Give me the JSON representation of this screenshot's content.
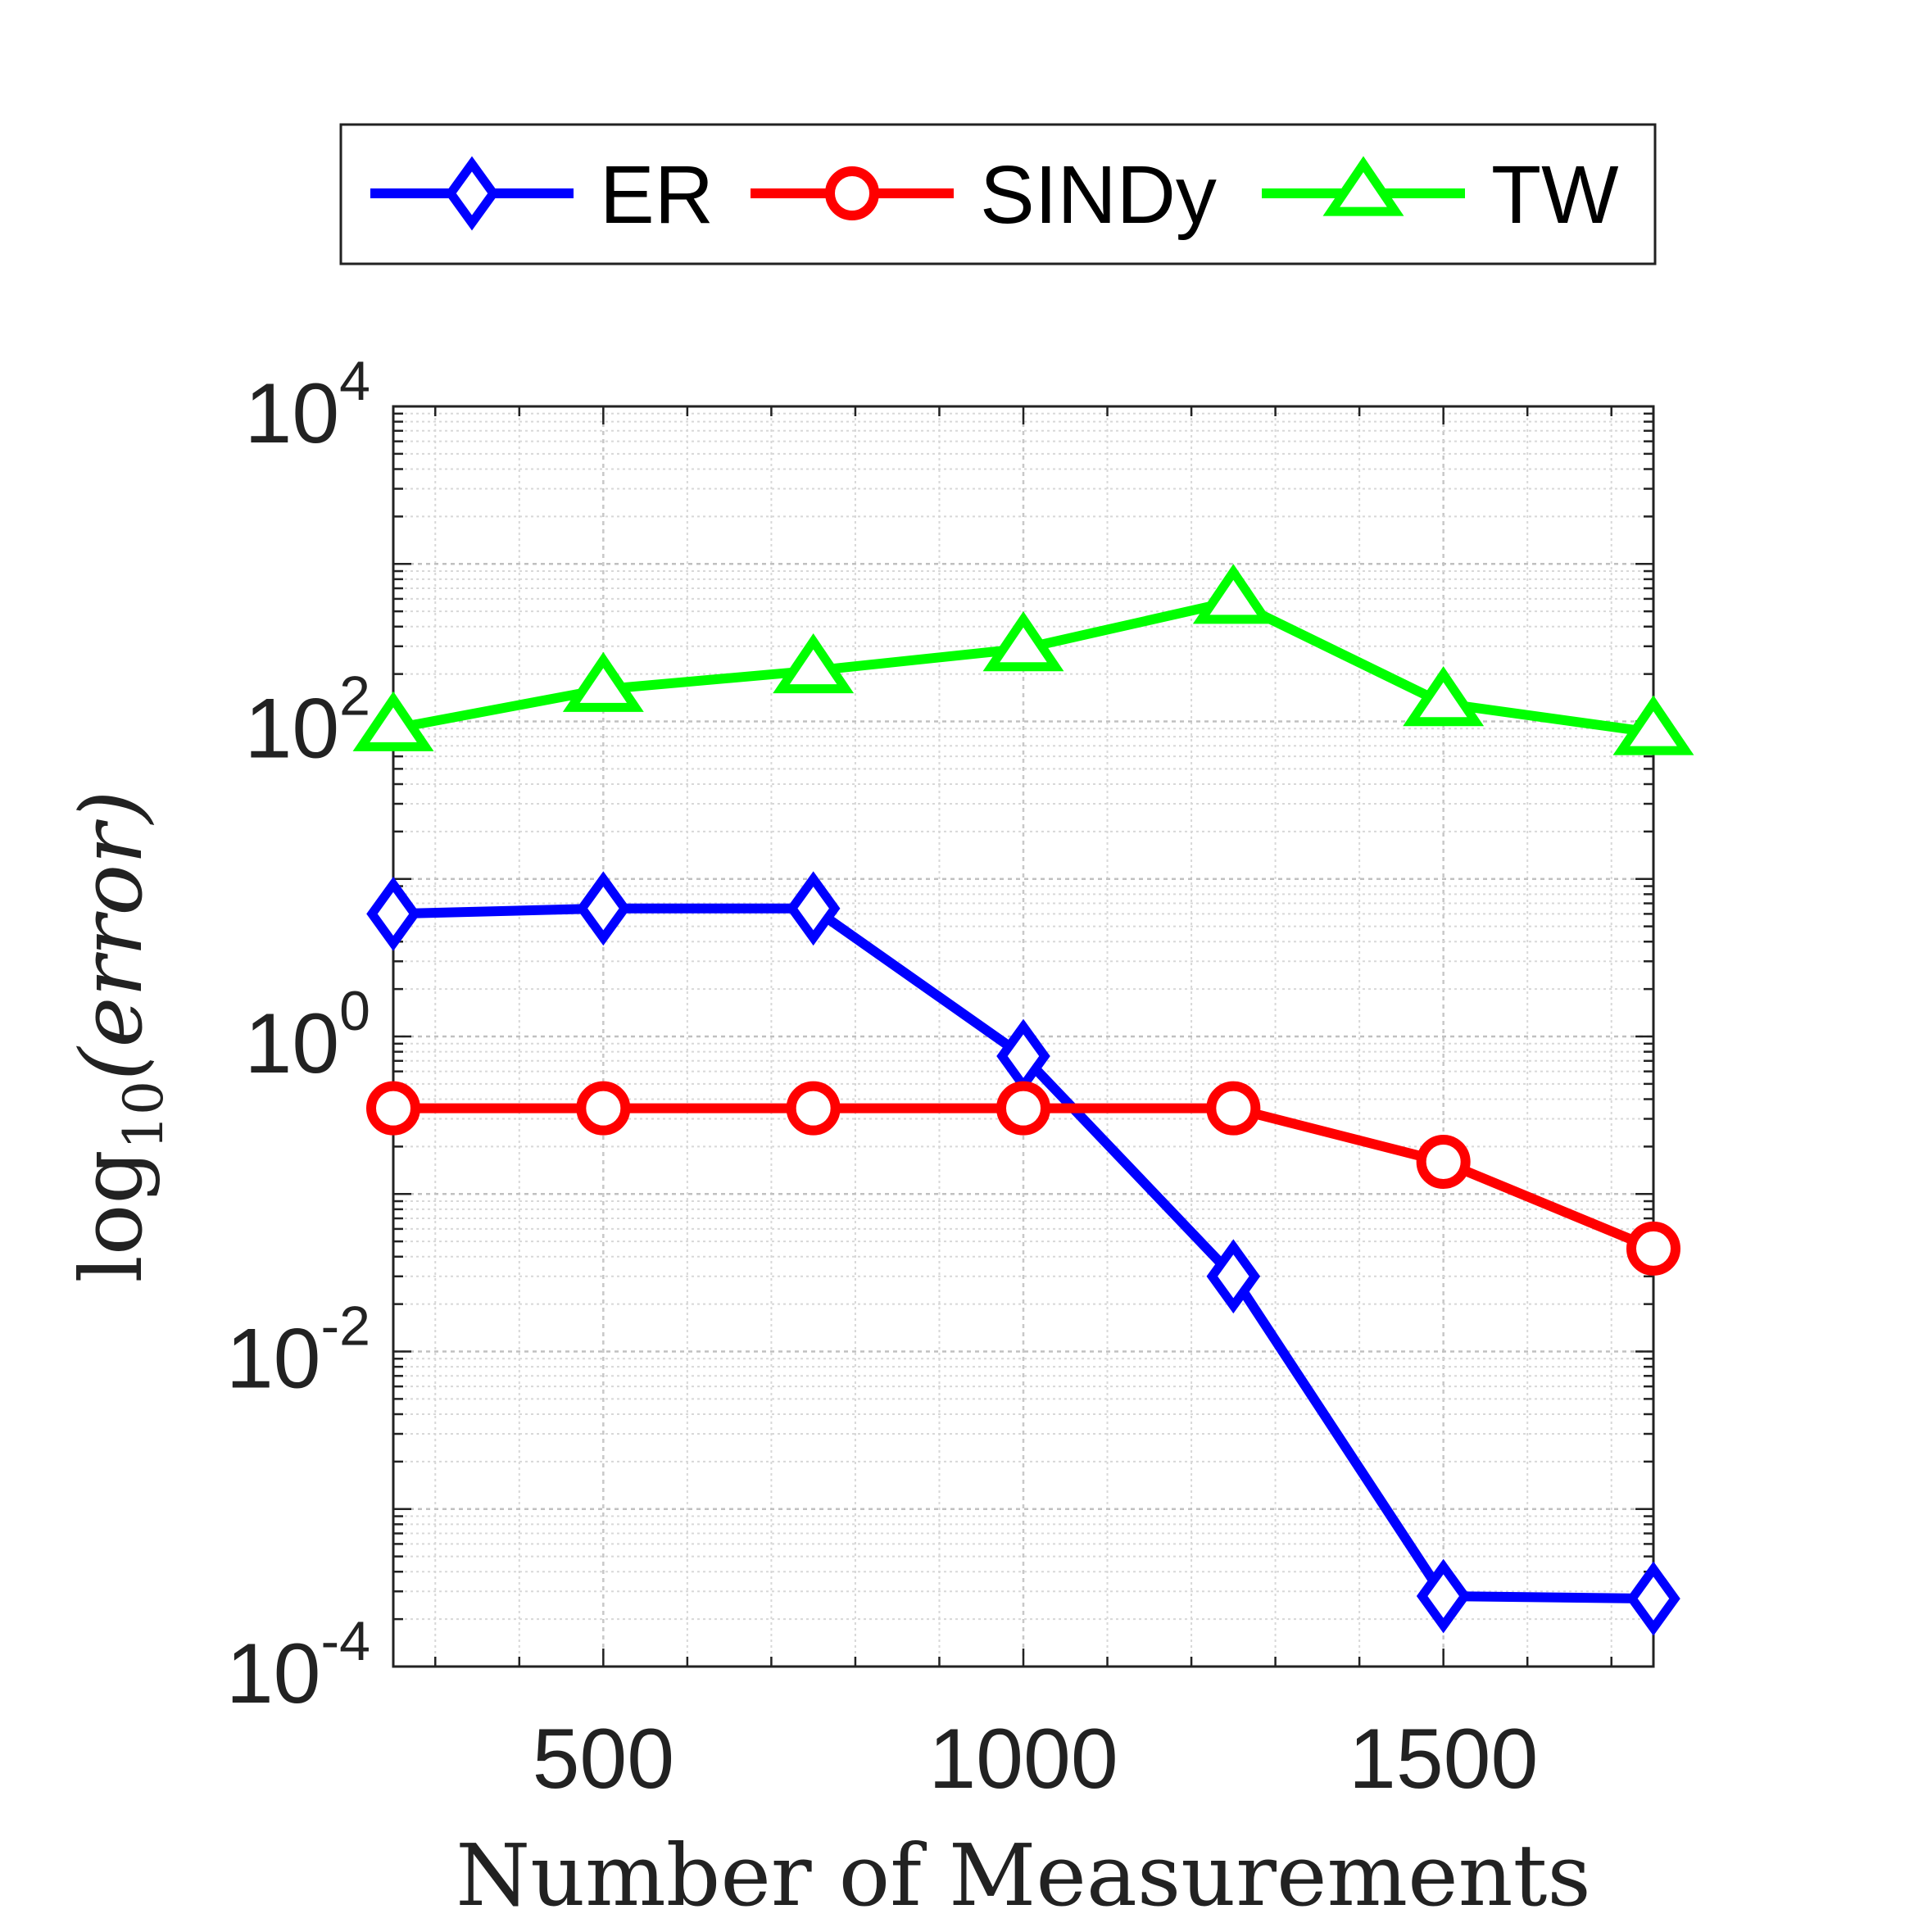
{
  "chart_data": {
    "type": "line",
    "xlabel": "Number of Measurements",
    "ylabel": {
      "prefix": "log",
      "subscript": "10",
      "argument": "(error)"
    },
    "xlim": [
      250,
      1750
    ],
    "ylim": [
      0.0001,
      10000
    ],
    "yscale": "log",
    "x_ticks": [
      500,
      1000,
      1500
    ],
    "x_tick_labels": [
      "500",
      "1000",
      "1500"
    ],
    "y_ticks": [
      {
        "value": 0.0001,
        "base": "10",
        "exponent": "-4"
      },
      {
        "value": 0.01,
        "base": "10",
        "exponent": "-2"
      },
      {
        "value": 1,
        "base": "10",
        "exponent": "0"
      },
      {
        "value": 100,
        "base": "10",
        "exponent": "2"
      },
      {
        "value": 10000,
        "base": "10",
        "exponent": "4"
      }
    ],
    "grid": true,
    "legend_position": "top",
    "x": [
      250,
      500,
      750,
      1000,
      1250,
      1500,
      1750
    ],
    "series": [
      {
        "name": "ER",
        "color": "#0000ff",
        "marker": "diamond",
        "values": [
          6.0,
          6.5,
          6.5,
          0.75,
          0.03,
          0.00028,
          0.00027
        ]
      },
      {
        "name": "SINDy",
        "color": "#ff0000",
        "marker": "circle",
        "values": [
          0.35,
          0.35,
          0.35,
          0.35,
          0.35,
          0.16,
          0.045
        ]
      },
      {
        "name": "TW",
        "color": "#00ff00",
        "marker": "triangle",
        "values": [
          90,
          160,
          210,
          290,
          580,
          130,
          85
        ]
      }
    ]
  }
}
